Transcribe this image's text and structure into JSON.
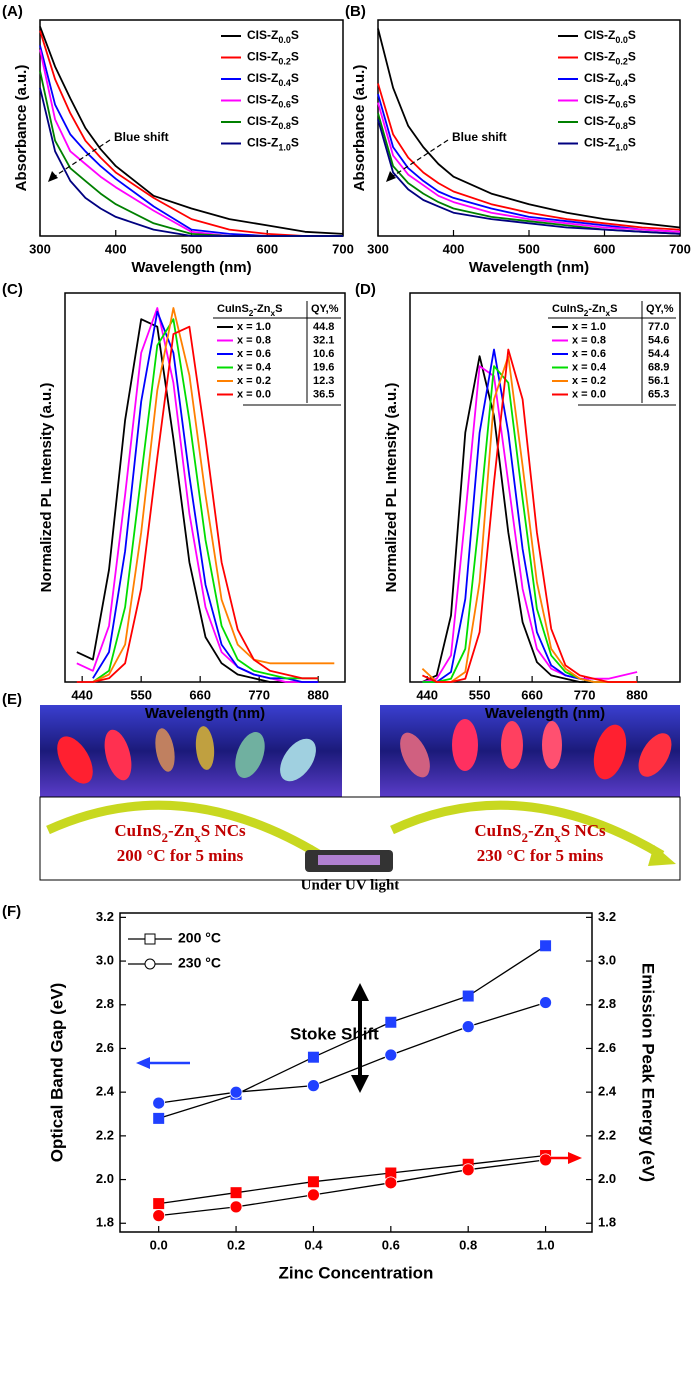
{
  "chart_data": [
    {
      "type": "line",
      "label": "(A)",
      "xlabel": "Wavelength (nm)",
      "ylabel": "Absorbance (a.u.)",
      "annotation": "Blue shift",
      "x": [
        300,
        320,
        340,
        360,
        380,
        400,
        450,
        500,
        550,
        600,
        650,
        700
      ],
      "xlim": [
        300,
        700
      ],
      "xticks": [
        300,
        400,
        500,
        600,
        700
      ],
      "ylim": [
        0,
        1.02
      ],
      "legend": "upper right",
      "series": [
        {
          "name": "CIS-Z0.0S",
          "color": "#000000",
          "values": [
            0.99,
            0.8,
            0.65,
            0.51,
            0.41,
            0.33,
            0.19,
            0.13,
            0.08,
            0.05,
            0.02,
            0.01
          ]
        },
        {
          "name": "CIS-Z0.2S",
          "color": "#ff0000",
          "values": [
            0.97,
            0.74,
            0.58,
            0.45,
            0.37,
            0.3,
            0.18,
            0.08,
            0.03,
            0.01,
            0,
            0
          ]
        },
        {
          "name": "CIS-Z0.4S",
          "color": "#0000ff",
          "values": [
            0.9,
            0.62,
            0.48,
            0.4,
            0.33,
            0.27,
            0.14,
            0.03,
            0.01,
            0,
            0,
            0
          ]
        },
        {
          "name": "CIS-Z0.6S",
          "color": "#ff00ff",
          "values": [
            0.88,
            0.55,
            0.4,
            0.34,
            0.28,
            0.23,
            0.12,
            0.02,
            0,
            0,
            0,
            0
          ]
        },
        {
          "name": "CIS-Z0.8S",
          "color": "#008000",
          "values": [
            0.78,
            0.45,
            0.32,
            0.26,
            0.2,
            0.15,
            0.06,
            0.01,
            0,
            0,
            0,
            0
          ]
        },
        {
          "name": "CIS-Z1.0S",
          "color": "#000080",
          "values": [
            0.7,
            0.4,
            0.26,
            0.18,
            0.13,
            0.09,
            0.03,
            0,
            0,
            0,
            0,
            0
          ]
        }
      ]
    },
    {
      "type": "line",
      "label": "(B)",
      "xlabel": "Wavelength (nm)",
      "ylabel": "Absorbance (a.u.)",
      "annotation": "Blue shift",
      "x": [
        300,
        320,
        340,
        360,
        380,
        400,
        450,
        500,
        550,
        600,
        650,
        700
      ],
      "xlim": [
        300,
        700
      ],
      "xticks": [
        300,
        400,
        500,
        600,
        700
      ],
      "ylim": [
        0,
        1.02
      ],
      "legend": "upper right",
      "series": [
        {
          "name": "CIS-Z0.0S",
          "color": "#000000",
          "values": [
            0.98,
            0.7,
            0.52,
            0.42,
            0.34,
            0.28,
            0.2,
            0.15,
            0.11,
            0.08,
            0.06,
            0.04
          ]
        },
        {
          "name": "CIS-Z0.2S",
          "color": "#ff0000",
          "values": [
            0.72,
            0.48,
            0.37,
            0.3,
            0.25,
            0.21,
            0.15,
            0.11,
            0.08,
            0.06,
            0.04,
            0.03
          ]
        },
        {
          "name": "CIS-Z0.4S",
          "color": "#0000ff",
          "values": [
            0.67,
            0.42,
            0.32,
            0.26,
            0.21,
            0.18,
            0.13,
            0.09,
            0.07,
            0.05,
            0.03,
            0.02
          ]
        },
        {
          "name": "CIS-Z0.6S",
          "color": "#ff00ff",
          "values": [
            0.63,
            0.38,
            0.29,
            0.24,
            0.19,
            0.16,
            0.11,
            0.08,
            0.06,
            0.04,
            0.03,
            0.02
          ]
        },
        {
          "name": "CIS-Z0.8S",
          "color": "#008000",
          "values": [
            0.58,
            0.33,
            0.25,
            0.2,
            0.16,
            0.13,
            0.09,
            0.07,
            0.05,
            0.03,
            0.02,
            0.01
          ]
        },
        {
          "name": "CIS-Z1.0S",
          "color": "#000080",
          "values": [
            0.55,
            0.3,
            0.22,
            0.17,
            0.14,
            0.11,
            0.08,
            0.06,
            0.04,
            0.03,
            0.02,
            0.01
          ]
        }
      ]
    },
    {
      "type": "line",
      "label": "(C)",
      "xlabel": "Wavelength (nm)",
      "ylabel": "Normalized PL Intensity (a.u.)",
      "x": [
        430,
        460,
        490,
        520,
        550,
        580,
        610,
        640,
        670,
        700,
        730,
        760,
        790,
        820,
        850,
        880,
        910
      ],
      "xlim": [
        408,
        930
      ],
      "xticks": [
        440,
        550,
        660,
        770,
        880
      ],
      "ylim": [
        0,
        1.04
      ],
      "legend_table": {
        "header": [
          "CuInS2-ZnxS",
          "QY,%"
        ]
      },
      "series": [
        {
          "name": "x = 1.0",
          "qy": "44.8",
          "color": "#000000",
          "values": [
            0.08,
            0.06,
            0.3,
            0.7,
            0.97,
            0.95,
            0.65,
            0.32,
            0.12,
            0.05,
            0.02,
            0.01,
            0,
            0,
            0,
            0,
            null
          ]
        },
        {
          "name": "x = 0.8",
          "qy": "32.1",
          "color": "#ff00ff",
          "values": [
            0.05,
            0.03,
            0.15,
            0.5,
            0.88,
            1.0,
            0.8,
            0.45,
            0.2,
            0.08,
            0.04,
            0.02,
            0.01,
            0,
            0,
            0,
            null
          ]
        },
        {
          "name": "x = 0.6",
          "qy": "10.6",
          "color": "#0000ff",
          "values": [
            null,
            0.01,
            0.08,
            0.35,
            0.75,
            0.99,
            0.88,
            0.55,
            0.26,
            0.1,
            0.04,
            0.02,
            0.01,
            0.01,
            0,
            0,
            null
          ]
        },
        {
          "name": "x = 0.4",
          "qy": "19.6",
          "color": "#00dd00",
          "values": [
            null,
            0,
            0.03,
            0.2,
            0.55,
            0.9,
            0.97,
            0.7,
            0.38,
            0.15,
            0.06,
            0.03,
            0.02,
            0.01,
            0.01,
            0.01,
            null
          ]
        },
        {
          "name": "x = 0.2",
          "qy": "12.3",
          "color": "#ff8000",
          "values": [
            null,
            0,
            0.02,
            0.1,
            0.4,
            0.78,
            1.0,
            0.82,
            0.5,
            0.22,
            0.1,
            0.06,
            0.05,
            0.05,
            0.05,
            0.05,
            0.05
          ]
        },
        {
          "name": "x = 0.0",
          "qy": "36.5",
          "color": "#ff0000",
          "values": [
            0,
            0,
            0.01,
            0.05,
            0.25,
            0.6,
            0.93,
            0.95,
            0.65,
            0.32,
            0.14,
            0.06,
            0.03,
            0.02,
            0.01,
            0.01,
            null
          ]
        }
      ]
    },
    {
      "type": "line",
      "label": "(D)",
      "xlabel": "Wavelength (nm)",
      "ylabel": "Normalized PL Intensity (a.u.)",
      "x": [
        430,
        460,
        490,
        520,
        550,
        580,
        610,
        640,
        670,
        700,
        730,
        760,
        790,
        820,
        850,
        880
      ],
      "xlim": [
        404,
        970
      ],
      "xticks": [
        440,
        550,
        660,
        770,
        880
      ],
      "ylim": [
        0,
        1.17
      ],
      "legend_table": {
        "header": [
          "CuInS2-ZnxS",
          "QY,%"
        ]
      },
      "series": [
        {
          "name": "x = 1.0",
          "qy": "77.0",
          "color": "#000000",
          "values": [
            0,
            0.02,
            0.2,
            0.75,
            0.98,
            0.8,
            0.45,
            0.18,
            0.06,
            0.02,
            0.01,
            0,
            0,
            0,
            0,
            0
          ]
        },
        {
          "name": "x = 0.8",
          "qy": "54.6",
          "color": "#ff00ff",
          "values": [
            0,
            0.01,
            0.08,
            0.5,
            0.95,
            0.92,
            0.6,
            0.28,
            0.1,
            0.04,
            0.02,
            0.01,
            0.01,
            0.01,
            0.02,
            0.03
          ]
        },
        {
          "name": "x = 0.6",
          "qy": "54.4",
          "color": "#0000ff",
          "values": [
            0,
            0,
            0.03,
            0.25,
            0.75,
            1.0,
            0.75,
            0.4,
            0.15,
            0.05,
            0.02,
            0.01,
            0,
            0,
            0,
            0
          ]
        },
        {
          "name": "x = 0.4",
          "qy": "68.9",
          "color": "#00dd00",
          "values": [
            0,
            0,
            0.01,
            0.1,
            0.5,
            0.95,
            0.9,
            0.55,
            0.22,
            0.08,
            0.03,
            0.01,
            0,
            0,
            0,
            0
          ]
        },
        {
          "name": "x = 0.2",
          "qy": "56.1",
          "color": "#ff8000",
          "values": [
            0.04,
            0,
            0,
            0.03,
            0.3,
            0.85,
            0.98,
            0.65,
            0.3,
            0.1,
            0.04,
            0.01,
            0,
            0,
            0,
            0
          ]
        },
        {
          "name": "x = 0.0",
          "qy": "65.3",
          "color": "#ff0000",
          "values": [
            0.02,
            0,
            0,
            0.01,
            0.15,
            0.6,
            1.0,
            0.85,
            0.45,
            0.16,
            0.05,
            0.02,
            0.01,
            0,
            0,
            0
          ]
        }
      ]
    },
    {
      "type": "line",
      "label": "(F)",
      "xlabel": "Zinc Concentration",
      "ylabel": "Optical Band Gap (eV)",
      "y2label": "Emission Peak Energy (eV)",
      "annotation": "Stoke Shift",
      "x": [
        0,
        0.2,
        0.4,
        0.6,
        0.8,
        1.0
      ],
      "xlim": [
        -0.1,
        1.12
      ],
      "xticks": [
        {
          "value": 0,
          "label": "0.0"
        },
        0.2,
        0.4,
        0.6,
        0.8,
        {
          "value": 1,
          "label": "1.0"
        }
      ],
      "ylim": [
        1.76,
        3.22
      ],
      "yticks": [
        1.8,
        {
          "value": 2,
          "label": "2.0"
        },
        2.2,
        2.4,
        2.6,
        2.8,
        {
          "value": 3,
          "label": "3.0"
        },
        3.2
      ],
      "y2lim": [
        1.76,
        3.22
      ],
      "y2ticks": [
        1.8,
        {
          "value": 2,
          "label": "2.0"
        },
        2.2,
        2.4,
        2.6,
        2.8,
        {
          "value": 3,
          "label": "3.0"
        },
        3.2
      ],
      "line_color": "#000000",
      "legend": [
        {
          "name": "200 °C",
          "marker": "square"
        },
        {
          "name": "230 °C",
          "marker": "circle"
        }
      ],
      "series": [
        {
          "marker": "square",
          "color": "#2040ff",
          "values": [
            2.28,
            2.39,
            2.56,
            2.72,
            2.84,
            3.07
          ]
        },
        {
          "marker": "circle",
          "color": "#2040ff",
          "values": [
            2.35,
            2.4,
            2.43,
            2.57,
            2.7,
            2.81
          ]
        },
        {
          "marker": "square",
          "color": "#ff0000",
          "axis": "y2",
          "values": [
            1.89,
            1.94,
            1.99,
            2.03,
            2.07,
            2.11
          ]
        },
        {
          "marker": "circle",
          "color": "#ff0000",
          "axis": "y2",
          "values": [
            1.835,
            1.875,
            1.93,
            1.985,
            2.045,
            2.09
          ]
        }
      ]
    }
  ],
  "photo_panel": {
    "label": "(E)",
    "left_caption": [
      "CuInS2-ZnxS NCs",
      "200 °C for 5 mins"
    ],
    "center_caption": "Under UV light",
    "right_caption": [
      "CuInS2-ZnxS NCs",
      "230 °C for 5 mins"
    ]
  }
}
